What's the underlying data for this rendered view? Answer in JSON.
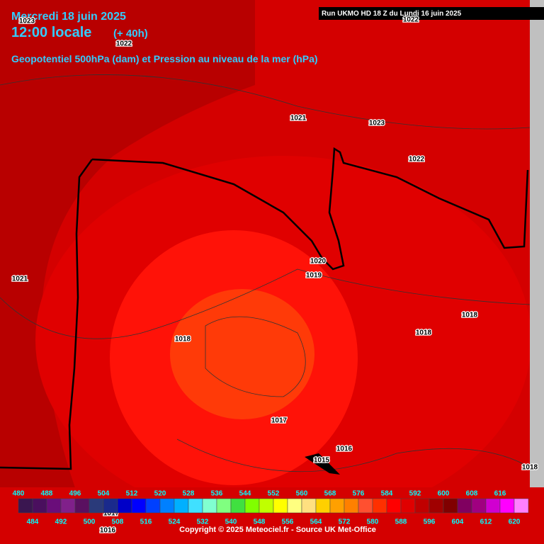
{
  "header": {
    "date": "Mercredi 18 juin 2025",
    "time": "12:00 locale",
    "lead": "(+ 40h)",
    "subtitle": "Geopotentiel 500hPa (dam) et Pression au niveau de la mer (hPa)",
    "run": "Run UKMO HD 18 Z du Lundi 16 juin 2025"
  },
  "isobar_labels": [
    "1023",
    "1022",
    "1022",
    "1021",
    "1023",
    "1022",
    "1021",
    "1020",
    "1019",
    "1018",
    "1018",
    "1018",
    "1017",
    "1016",
    "1015",
    "1018",
    "1017",
    "1016"
  ],
  "legend": {
    "values": [
      480,
      484,
      488,
      492,
      496,
      500,
      504,
      508,
      512,
      516,
      520,
      524,
      528,
      532,
      536,
      540,
      544,
      548,
      552,
      556,
      560,
      564,
      568,
      572,
      576,
      580,
      584,
      588,
      592,
      596,
      600,
      604,
      608,
      612,
      616,
      620
    ],
    "colors": [
      "#3a1650",
      "#4a0f5e",
      "#6a0d7a",
      "#80208a",
      "#5a1060",
      "#2a3a7a",
      "#1a2a8c",
      "#0000c8",
      "#0000ff",
      "#0040ff",
      "#0080ff",
      "#00b0ff",
      "#40e0ff",
      "#80ffd0",
      "#80ff80",
      "#40e040",
      "#80ff00",
      "#c0ff00",
      "#ffff00",
      "#ffff80",
      "#ffe080",
      "#ffd000",
      "#ffa000",
      "#ff8000",
      "#ff5030",
      "#ff3000",
      "#ff0000",
      "#e00000",
      "#c00000",
      "#a00000",
      "#800000",
      "#800060",
      "#a00080",
      "#d000d0",
      "#ff00ff",
      "#ff80ff"
    ]
  },
  "copyright": "Copyright © 2025 Meteociel.fr - Source UK Met-Office"
}
